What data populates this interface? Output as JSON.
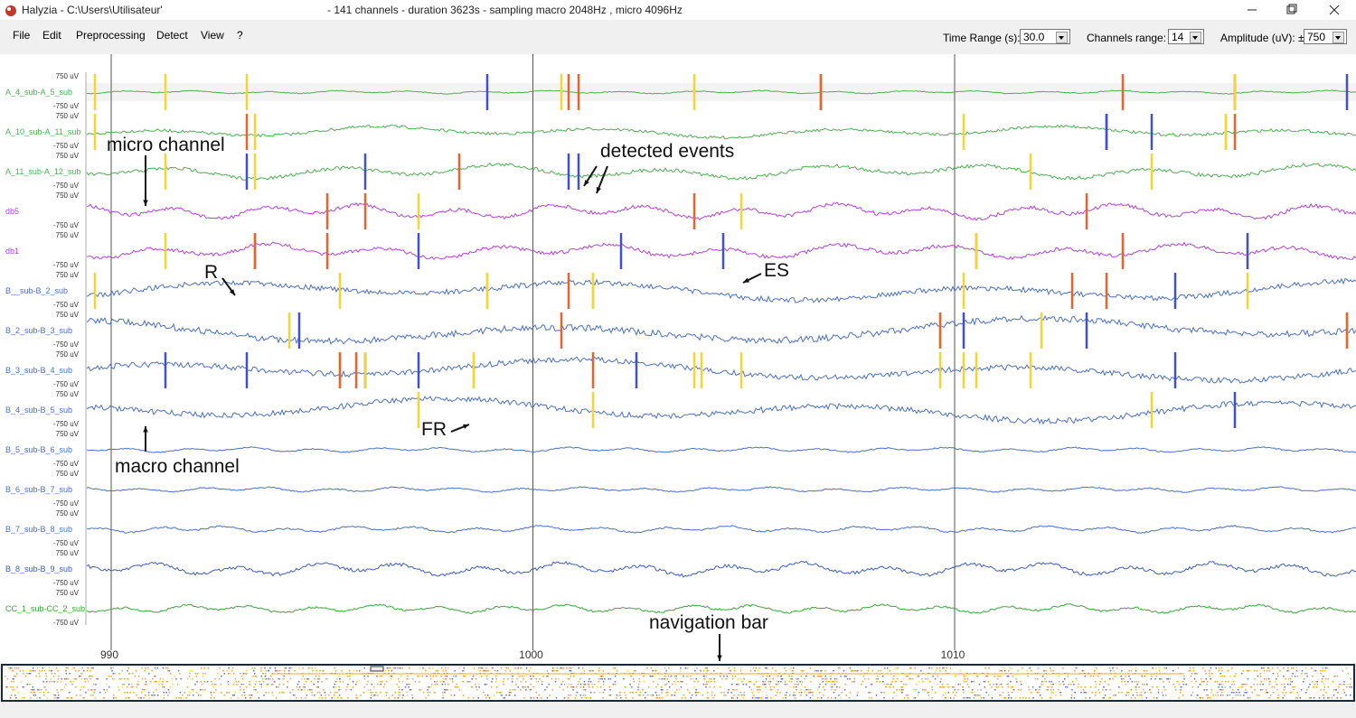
{
  "window": {
    "title": "Halyzia - C:\\Users\\Utilisateur'",
    "info": "- 141 channels - duration 3623s - sampling macro 2048Hz , micro 4096Hz"
  },
  "menu": [
    "File",
    "Edit",
    "Preprocessing",
    "Detect",
    "View",
    "?"
  ],
  "toolbar": {
    "time_range_label": "Time Range (s):",
    "time_range": "30.0",
    "channels_label": "Channels range:",
    "channels": "14",
    "amplitude_label": "Amplitude (uV): ±",
    "amplitude": "750"
  },
  "scale": {
    "top": "750 uV",
    "bottom": "-750 uV"
  },
  "channels": [
    {
      "name": "A_4_sub-A_5_sub",
      "color": "#4caf50"
    },
    {
      "name": "A_10_sub-A_11_sub",
      "color": "#4caf50"
    },
    {
      "name": "A_11_sub-A_12_sub",
      "color": "#4caf50"
    },
    {
      "name": "db5",
      "color": "#b43fe0"
    },
    {
      "name": "db1",
      "color": "#b43fe0"
    },
    {
      "name": "B__sub-B_2_sub",
      "color": "#4a6fc8"
    },
    {
      "name": "B_2_sub-B_3_sub",
      "color": "#4a6fc8"
    },
    {
      "name": "B_3_sub-B_4_sub",
      "color": "#4a6fc8"
    },
    {
      "name": "B_4_sub-B_5_sub",
      "color": "#4a6fc8"
    },
    {
      "name": "B_5_sub-B_6_sub",
      "color": "#4a6fc8"
    },
    {
      "name": "B_6_sub-B_7_sub",
      "color": "#4a6fc8"
    },
    {
      "name": "B_7_sub-B_8_sub",
      "color": "#4a6fc8"
    },
    {
      "name": "B_8_sub-B_9_sub",
      "color": "#3b5cc0"
    },
    {
      "name": "CC_1_sub-CC_2_sub",
      "color": "#3aa53a"
    }
  ],
  "time_ticks": [
    990,
    1000,
    1010
  ],
  "annotations": {
    "micro_channel": "micro channel",
    "detected_events": "detected events",
    "r": "R",
    "es": "ES",
    "fr": "FR",
    "macro_channel": "macro channel",
    "navigation_bar": "navigation bar"
  }
}
